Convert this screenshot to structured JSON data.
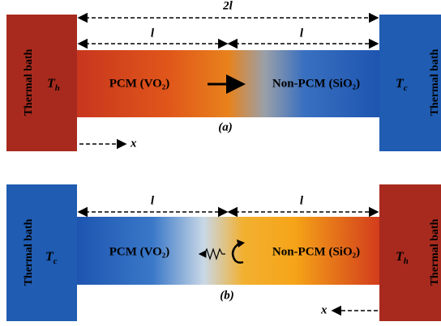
{
  "panels": [
    {
      "dimension_total": "2l",
      "dimension_left": "l",
      "dimension_right": "l",
      "left_bath": {
        "label": "Thermal bath",
        "temp": {
          "symbol": "T",
          "sub": "h"
        }
      },
      "right_bath": {
        "label": "Thermal bath",
        "temp": {
          "symbol": "T",
          "sub": "c"
        }
      },
      "left_material": "PCM (VO₂)",
      "right_material": "Non-PCM (SiO₂)",
      "caption": "(a)",
      "axis": "x"
    },
    {
      "dimension_left": "l",
      "dimension_right": "l",
      "left_bath": {
        "label": "Thermal bath",
        "temp": {
          "symbol": "T",
          "sub": "c"
        }
      },
      "right_bath": {
        "label": "Thermal bath",
        "temp": {
          "symbol": "T",
          "sub": "h"
        }
      },
      "left_material": "PCM (VO₂)",
      "right_material": "Non-PCM (SiO₂)",
      "caption": "(b)",
      "axis": "x"
    }
  ]
}
